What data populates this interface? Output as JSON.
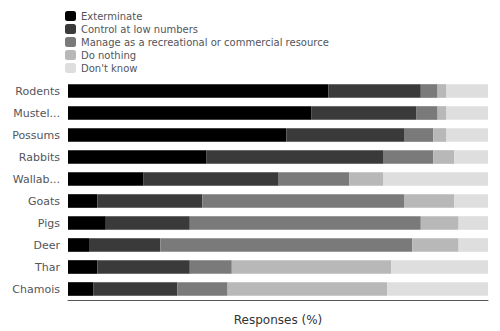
{
  "chart_data": {
    "type": "bar",
    "orientation": "horizontal",
    "stacked": true,
    "categories": [
      "Rodents",
      "Mustel...",
      "Possums",
      "Rabbits",
      "Wallab...",
      "Goats",
      "Pigs",
      "Deer",
      "Thar",
      "Chamois"
    ],
    "series": [
      {
        "name": "Exterminate",
        "color": "#000000",
        "values": [
          62,
          58,
          52,
          33,
          18,
          7,
          9,
          5,
          7,
          6
        ]
      },
      {
        "name": "Control at low numbers",
        "color": "#3a3a3a",
        "values": [
          22,
          25,
          28,
          42,
          32,
          25,
          20,
          17,
          22,
          20
        ]
      },
      {
        "name": "Manage as a recreational or commercial resource",
        "color": "#7a7a7a",
        "values": [
          4,
          5,
          7,
          12,
          17,
          48,
          55,
          60,
          10,
          12
        ]
      },
      {
        "name": "Do nothing",
        "color": "#b8b8b8",
        "values": [
          2,
          2,
          3,
          5,
          8,
          12,
          9,
          11,
          38,
          38
        ]
      },
      {
        "name": "Don't know",
        "color": "#dedede",
        "values": [
          10,
          10,
          10,
          8,
          25,
          8,
          7,
          7,
          23,
          24
        ]
      }
    ],
    "xlabel": "Responses (%)",
    "xlim": [
      0,
      100
    ],
    "tick_labels": "y",
    "legend": "upper left",
    "grid": false
  }
}
